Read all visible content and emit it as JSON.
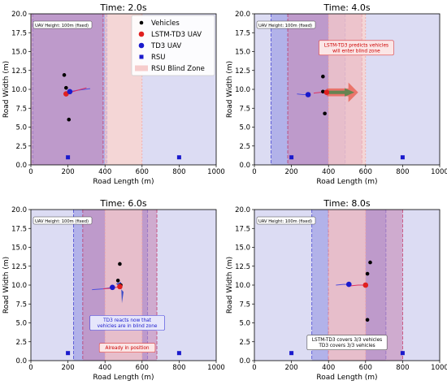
{
  "chart_data": [
    {
      "type": "scatter",
      "title": "Time: 2.0s",
      "xlabel": "Road Length (m)",
      "ylabel": "Road Width (m)",
      "xlim": [
        0,
        1000
      ],
      "ylim": [
        0,
        20
      ],
      "xticks": [
        "0",
        "200",
        "400",
        "600",
        "800",
        "1000"
      ],
      "yticks": [
        "0.0",
        "2.5",
        "5.0",
        "7.5",
        "10.0",
        "12.5",
        "15.0",
        "17.5",
        "20.0"
      ],
      "info": "UAV Height: 100m (fixed)",
      "legend": {
        "placement": "top-right",
        "entries": [
          "Vehicles",
          "LSTM-TD3 UAV",
          "TD3 UAV",
          "RSU",
          "RSU Blind Zone"
        ]
      },
      "coverage": [
        {
          "owner": "rsu",
          "x0": 0,
          "x1": 400
        },
        {
          "owner": "rsu",
          "x0": 600,
          "x1": 1000
        },
        {
          "owner": "td3",
          "x0": 10,
          "x1": 410
        },
        {
          "owner": "lstm",
          "x0": 0,
          "x1": 390
        }
      ],
      "blind_zones": [
        {
          "x0": 400,
          "x1": 600
        }
      ],
      "rsus": [
        {
          "x": 200,
          "y": 1.0
        },
        {
          "x": 800,
          "y": 1.0
        }
      ],
      "vehicles": [
        {
          "x": 180,
          "y": 11.9
        },
        {
          "x": 190,
          "y": 10.2
        },
        {
          "x": 205,
          "y": 6.0
        }
      ],
      "lstm_uav": {
        "x": 190,
        "y": 9.4,
        "trail": [
          [
            190,
            9.4
          ],
          [
            240,
            9.8
          ],
          [
            300,
            10.2
          ]
        ]
      },
      "td3_uav": {
        "x": 210,
        "y": 9.7,
        "trail": [
          [
            210,
            9.7
          ],
          [
            260,
            9.9
          ],
          [
            320,
            10.1
          ]
        ]
      },
      "arrows": [],
      "notes": []
    },
    {
      "type": "scatter",
      "title": "Time: 4.0s",
      "xlabel": "Road Length (m)",
      "ylabel": "Road Width (m)",
      "xlim": [
        0,
        1000
      ],
      "ylim": [
        0,
        20
      ],
      "xticks": [
        "0",
        "200",
        "400",
        "600",
        "800",
        "1000"
      ],
      "yticks": [
        "0.0",
        "2.5",
        "5.0",
        "7.5",
        "10.0",
        "12.5",
        "15.0",
        "17.5",
        "20.0"
      ],
      "info": "UAV Height: 100m (fixed)",
      "coverage": [
        {
          "owner": "rsu",
          "x0": 0,
          "x1": 400
        },
        {
          "owner": "rsu",
          "x0": 600,
          "x1": 1000
        },
        {
          "owner": "td3",
          "x0": 90,
          "x1": 490
        },
        {
          "owner": "lstm",
          "x0": 180,
          "x1": 580
        }
      ],
      "blind_zones": [
        {
          "x0": 400,
          "x1": 600
        }
      ],
      "rsus": [
        {
          "x": 200,
          "y": 1.0
        },
        {
          "x": 800,
          "y": 1.0
        }
      ],
      "vehicles": [
        {
          "x": 370,
          "y": 11.7
        },
        {
          "x": 370,
          "y": 9.7
        },
        {
          "x": 380,
          "y": 6.8
        }
      ],
      "lstm_uav": {
        "x": 390,
        "y": 9.6,
        "trail": [
          [
            320,
            9.5
          ],
          [
            355,
            9.6
          ],
          [
            390,
            9.6
          ]
        ]
      },
      "td3_uav": {
        "x": 290,
        "y": 9.3,
        "trail": [
          [
            230,
            9.4
          ],
          [
            260,
            9.3
          ],
          [
            290,
            9.3
          ]
        ]
      },
      "arrows": [
        {
          "color": "#e8594a",
          "x0": 390,
          "x1": 560,
          "y": 9.6,
          "width": 1.3
        },
        {
          "color": "#3a8a4a",
          "x0": 390,
          "x1": 540,
          "y": 9.6,
          "width": 0.55
        }
      ],
      "notes": [
        {
          "lines": [
            "LSTM-TD3 predicts vehicles",
            "will enter blind zone"
          ],
          "color": "#cc0000",
          "border": "#e04040",
          "bg": "#fbe6e6",
          "x": 550,
          "y": 15.5
        }
      ]
    },
    {
      "type": "scatter",
      "title": "Time: 6.0s",
      "xlabel": "Road Length (m)",
      "ylabel": "Road Width (m)",
      "xlim": [
        0,
        1000
      ],
      "ylim": [
        0,
        20
      ],
      "xticks": [
        "0",
        "200",
        "400",
        "600",
        "800",
        "1000"
      ],
      "yticks": [
        "0.0",
        "2.5",
        "5.0",
        "7.5",
        "10.0",
        "12.5",
        "15.0",
        "17.5",
        "20.0"
      ],
      "info": "UAV Height: 100m (fixed)",
      "coverage": [
        {
          "owner": "rsu",
          "x0": 0,
          "x1": 400
        },
        {
          "owner": "rsu",
          "x0": 600,
          "x1": 1000
        },
        {
          "owner": "td3",
          "x0": 230,
          "x1": 630
        },
        {
          "owner": "lstm",
          "x0": 280,
          "x1": 680
        }
      ],
      "blind_zones": [
        {
          "x0": 400,
          "x1": 600
        }
      ],
      "rsus": [
        {
          "x": 200,
          "y": 1.0
        },
        {
          "x": 800,
          "y": 1.0
        }
      ],
      "vehicles": [
        {
          "x": 480,
          "y": 12.8
        },
        {
          "x": 470,
          "y": 10.6
        },
        {
          "x": 485,
          "y": 10.0
        }
      ],
      "lstm_uav": {
        "x": 480,
        "y": 9.8,
        "trail": [
          [
            390,
            9.5
          ],
          [
            440,
            9.6
          ],
          [
            480,
            9.8
          ]
        ]
      },
      "td3_uav": {
        "x": 440,
        "y": 9.7,
        "trail": [
          [
            330,
            9.4
          ],
          [
            390,
            9.5
          ],
          [
            440,
            9.7
          ]
        ]
      },
      "arrows": [
        {
          "color": "#2a40c8",
          "x0": 460,
          "x1": 500,
          "y": 10.2,
          "y1": 7.6,
          "width": 0.9
        }
      ],
      "notes": [
        {
          "lines": [
            "TD3 reacts now that",
            "vehicles are in blind zone"
          ],
          "color": "#1a1acc",
          "border": "#4040dd",
          "bg": "#e6e6fb",
          "x": 520,
          "y": 5.0
        },
        {
          "lines": [
            "Already in position"
          ],
          "color": "#cc0000",
          "border": "#e04040",
          "bg": "#fbe6e6",
          "x": 520,
          "y": 1.7
        }
      ]
    },
    {
      "type": "scatter",
      "title": "Time: 8.0s",
      "xlabel": "Road Length (m)",
      "ylabel": "Road Width (m)",
      "xlim": [
        0,
        1000
      ],
      "ylim": [
        0,
        20
      ],
      "xticks": [
        "0",
        "200",
        "400",
        "600",
        "800",
        "1000"
      ],
      "yticks": [
        "0.0",
        "2.5",
        "5.0",
        "7.5",
        "10.0",
        "12.5",
        "15.0",
        "17.5",
        "20.0"
      ],
      "info": "UAV Height: 100m (fixed)",
      "coverage": [
        {
          "owner": "rsu",
          "x0": 0,
          "x1": 400
        },
        {
          "owner": "rsu",
          "x0": 600,
          "x1": 1000
        },
        {
          "owner": "td3",
          "x0": 310,
          "x1": 710
        },
        {
          "owner": "lstm",
          "x0": 400,
          "x1": 800
        }
      ],
      "blind_zones": [
        {
          "x0": 400,
          "x1": 600
        }
      ],
      "rsus": [
        {
          "x": 200,
          "y": 1.0
        },
        {
          "x": 800,
          "y": 1.0
        }
      ],
      "vehicles": [
        {
          "x": 625,
          "y": 13.0
        },
        {
          "x": 610,
          "y": 11.5
        },
        {
          "x": 610,
          "y": 5.4
        }
      ],
      "lstm_uav": {
        "x": 600,
        "y": 10.0,
        "trail": [
          [
            520,
            9.9
          ],
          [
            560,
            10.0
          ],
          [
            600,
            10.0
          ]
        ]
      },
      "td3_uav": {
        "x": 510,
        "y": 10.1,
        "trail": [
          [
            440,
            10.0
          ],
          [
            480,
            10.1
          ],
          [
            510,
            10.1
          ]
        ]
      },
      "arrows": [],
      "notes": [
        {
          "lines": [
            "LSTM-TD3 covers 3/3 vehicles",
            "TD3 covers 3/3 vehicles"
          ],
          "color": "#000000",
          "border": "#555555",
          "bg": "#ffffff",
          "x": 500,
          "y": 2.4
        }
      ]
    }
  ],
  "colors": {
    "vehicle": "#000000",
    "lstm_uav": "#e02020",
    "td3_uav": "#1a1acc",
    "rsu": "#1a1acc",
    "rsu_cover": "#dcdcf3",
    "td3_cover": "#8f8fe0",
    "lstm_cover": "#c78ab8",
    "blind_zone": "#f6cccc",
    "background": "#eeeeee"
  }
}
